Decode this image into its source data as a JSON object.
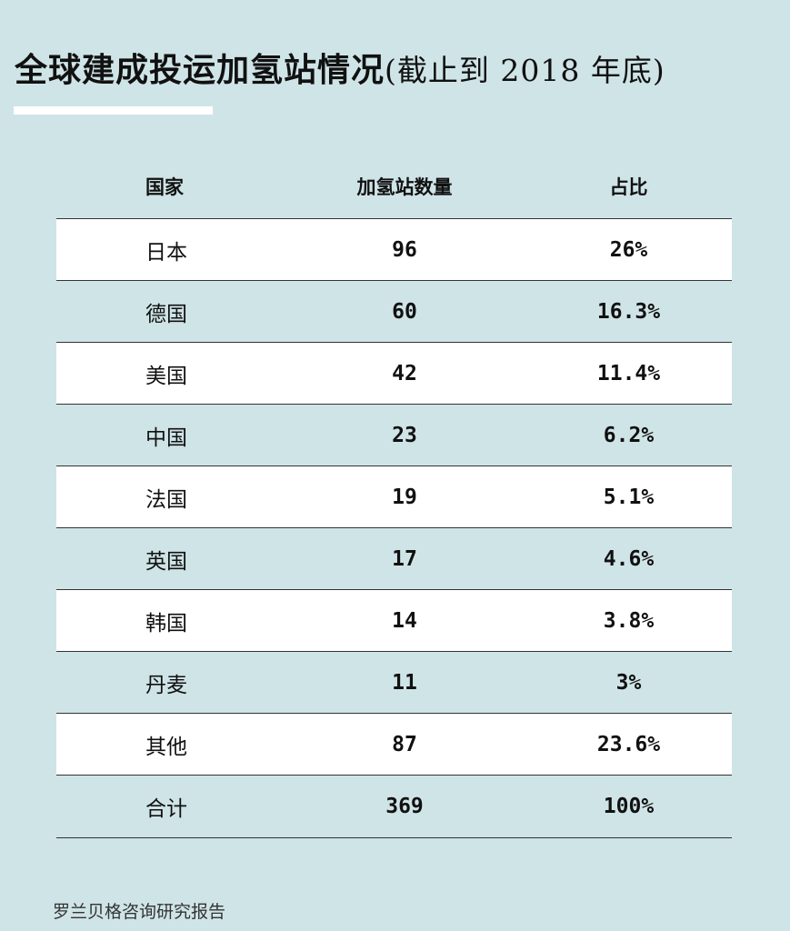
{
  "header": {
    "title": "全球建成投运加氢站情况",
    "subtitle": "(截止到 2018 年底)"
  },
  "table": {
    "columns": [
      "国家",
      "加氢站数量",
      "占比"
    ],
    "rows": [
      [
        "日本",
        "96",
        "26%"
      ],
      [
        "德国",
        "60",
        "16.3%"
      ],
      [
        "美国",
        "42",
        "11.4%"
      ],
      [
        "中国",
        "23",
        "6.2%"
      ],
      [
        "法国",
        "19",
        "5.1%"
      ],
      [
        "英国",
        "17",
        "4.6%"
      ],
      [
        "韩国",
        "14",
        "3.8%"
      ],
      [
        "丹麦",
        "11",
        "3%"
      ],
      [
        "其他",
        "87",
        "23.6%"
      ],
      [
        "合计",
        "369",
        "100%"
      ]
    ]
  },
  "footer": {
    "source": "罗兰贝格咨询研究报告"
  }
}
